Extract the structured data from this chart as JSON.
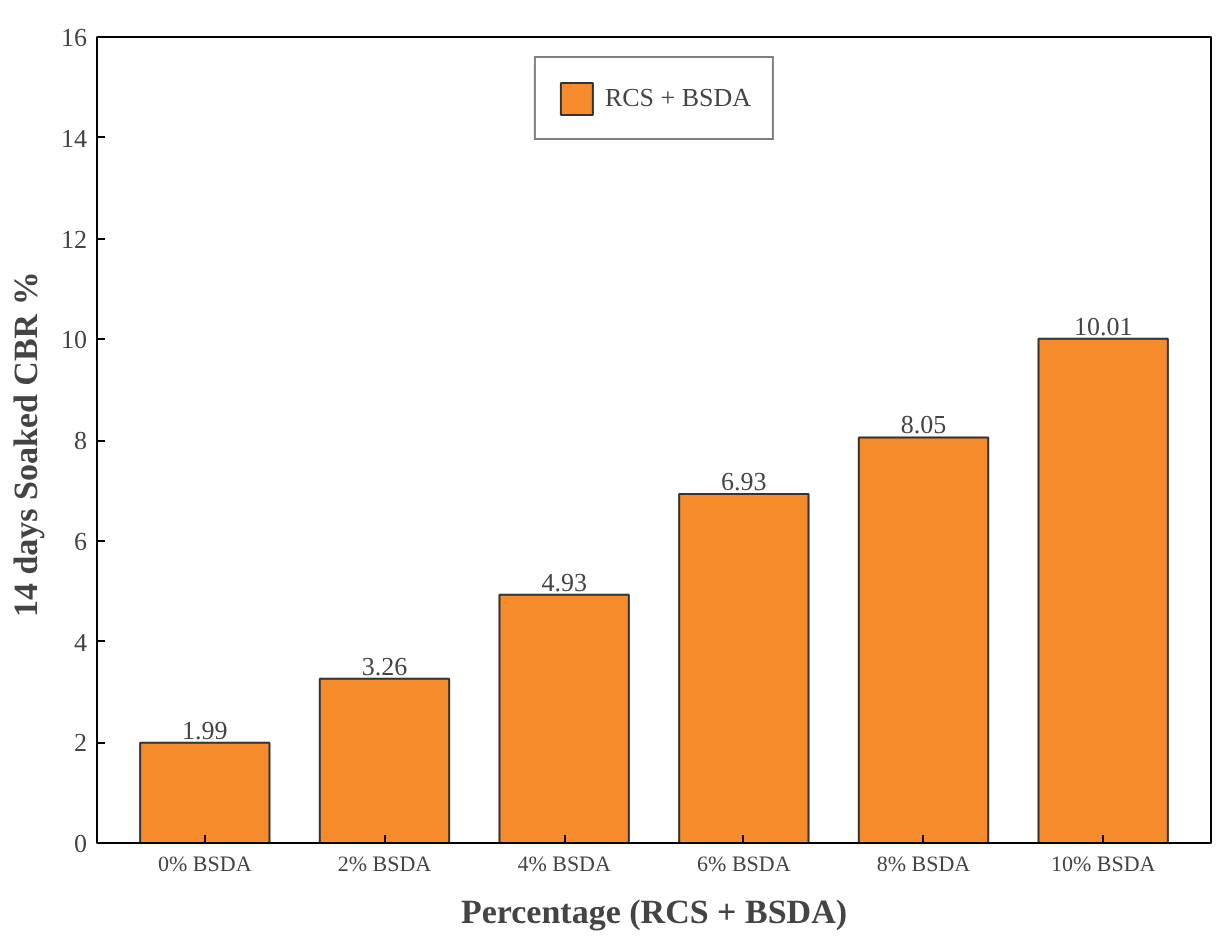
{
  "chart_data": {
    "type": "bar",
    "xlabel": "Percentage (RCS + BSDA)",
    "ylabel": "14 days Soaked  CBR %",
    "categories": [
      "0% BSDA",
      "2% BSDA",
      "4% BSDA",
      "6% BSDA",
      "8% BSDA",
      "10% BSDA"
    ],
    "series": [
      {
        "name": "RCS + BSDA",
        "color": "#f68b2c",
        "values": [
          1.99,
          3.26,
          4.93,
          6.93,
          8.05,
          10.01
        ]
      }
    ],
    "ylim": [
      0,
      16
    ],
    "yticks": [
      0,
      2,
      4,
      6,
      8,
      10,
      12,
      14,
      16
    ],
    "data_labels": true,
    "legend": "top",
    "grid": false
  }
}
